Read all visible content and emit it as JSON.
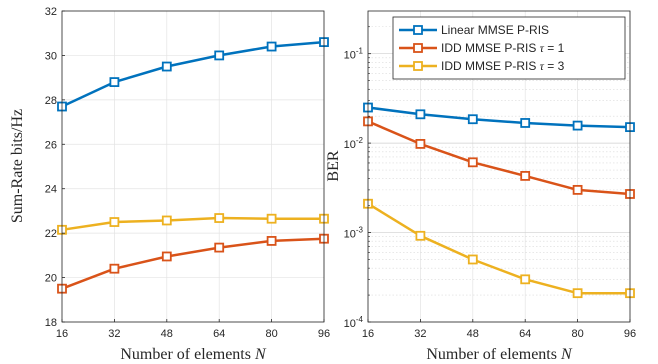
{
  "chart_data": [
    {
      "type": "line",
      "xlabel": "Number of elements N",
      "ylabel": "Sum-Rate bits/Hz",
      "xlim": [
        16,
        96
      ],
      "ylim": [
        18,
        32
      ],
      "x": [
        16,
        32,
        48,
        64,
        80,
        96
      ],
      "xticks": [
        "16",
        "32",
        "48",
        "64",
        "80",
        "96"
      ],
      "yticks": [
        "18",
        "20",
        "22",
        "24",
        "26",
        "28",
        "30",
        "32"
      ],
      "yscale": "linear",
      "grid": true,
      "legend": "none",
      "series": [
        {
          "name": "Linear MMSE P-RIS",
          "color": "#0072BD",
          "marker": "square",
          "values": [
            27.7,
            28.8,
            29.5,
            30.0,
            30.4,
            30.6
          ]
        },
        {
          "name": "IDD MMSE P-RIS τ = 1",
          "color": "#D95319",
          "marker": "square",
          "values": [
            19.5,
            20.4,
            20.95,
            21.35,
            21.65,
            21.75
          ]
        },
        {
          "name": "IDD MMSE P-RIS τ = 3",
          "color": "#EDB120",
          "marker": "square",
          "values": [
            22.15,
            22.5,
            22.57,
            22.68,
            22.65,
            22.65
          ]
        }
      ]
    },
    {
      "type": "line",
      "xlabel": "Number of elements N",
      "ylabel": "BER",
      "xlim": [
        16,
        96
      ],
      "ylim": [
        0.0001,
        0.3
      ],
      "x": [
        16,
        32,
        48,
        64,
        80,
        96
      ],
      "xticks": [
        "16",
        "32",
        "48",
        "64",
        "80",
        "96"
      ],
      "yticks": [
        {
          "base": "10",
          "exp": "-4",
          "value": 0.0001
        },
        {
          "base": "10",
          "exp": "-3",
          "value": 0.001
        },
        {
          "base": "10",
          "exp": "-2",
          "value": 0.01
        },
        {
          "base": "10",
          "exp": "-1",
          "value": 0.1
        }
      ],
      "yscale": "log",
      "grid": true,
      "legend": "top-right",
      "series": [
        {
          "name": "Linear MMSE P-RIS",
          "color": "#0072BD",
          "marker": "square",
          "values": [
            0.025,
            0.021,
            0.0185,
            0.0168,
            0.0157,
            0.0151
          ]
        },
        {
          "name": "IDD MMSE P-RIS τ = 1",
          "color": "#D95319",
          "marker": "square",
          "values": [
            0.0175,
            0.0098,
            0.0061,
            0.0043,
            0.003,
            0.0027
          ]
        },
        {
          "name": "IDD MMSE P-RIS τ = 3",
          "color": "#EDB120",
          "marker": "square",
          "values": [
            0.0021,
            0.00092,
            0.0005,
            0.0003,
            0.00021,
            0.00021
          ]
        }
      ]
    }
  ],
  "legend": {
    "entries": [
      {
        "prefix": "Linear MMSE P-RIS",
        "tau": "",
        "suffix": ""
      },
      {
        "prefix": "IDD MMSE P-RIS ",
        "tau": "τ",
        "suffix": " = 1"
      },
      {
        "prefix": "IDD MMSE P-RIS ",
        "tau": "τ",
        "suffix": " = 3"
      }
    ]
  },
  "axis_labels": {
    "x_text": "Number of elements ",
    "x_var": "N",
    "y_left": "Sum-Rate bits/Hz",
    "y_right": "BER"
  }
}
